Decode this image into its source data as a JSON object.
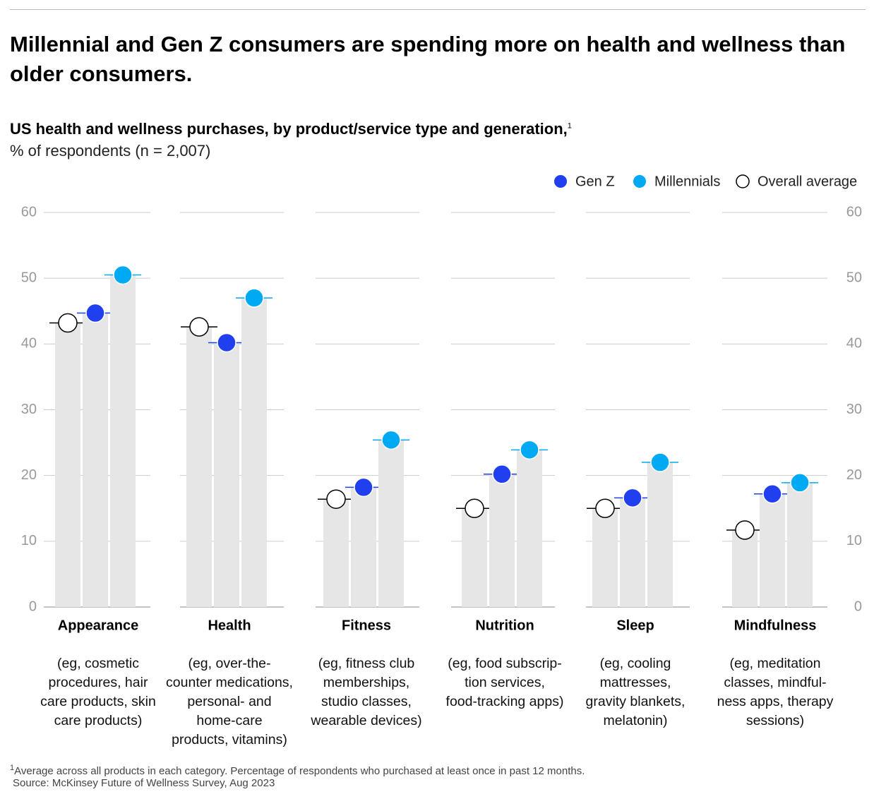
{
  "chart_data": {
    "type": "dot_bar",
    "title": "Millennial and Gen Z consumers are spending more on health and wellness than older consumers.",
    "subtitle": "US health and wellness purchases, by product/service type and generation,",
    "footnote_marker": "1",
    "unit_label": "% of respondents (n = 2,007)",
    "categories": [
      "Appearance",
      "Health",
      "Fitness",
      "Nutrition",
      "Sleep",
      "Mindfulness"
    ],
    "descriptions": [
      [
        "(eg, cosmetic",
        "procedures, hair",
        "care products, skin",
        "care products)"
      ],
      [
        "(eg, over-the-",
        "counter medications,",
        "personal- and",
        "home-care",
        "products, vitamins)"
      ],
      [
        "(eg, fitness club",
        "memberships,",
        "studio classes,",
        "wearable devices)"
      ],
      [
        "(eg, food subscrip-",
        "tion services,",
        "food-tracking apps)"
      ],
      [
        "(eg, cooling",
        "mattresses,",
        "gravity blankets,",
        "melatonin)"
      ],
      [
        "(eg, meditation",
        "classes, mindful-",
        "ness apps, therapy",
        "sessions)"
      ]
    ],
    "series": [
      {
        "name": "Gen Z",
        "color": "#2040f0",
        "marker": "filled",
        "values": [
          44.7,
          40.2,
          18.2,
          20.2,
          16.6,
          17.2
        ]
      },
      {
        "name": "Millennials",
        "color": "#00a9f4",
        "marker": "filled",
        "values": [
          50.5,
          47.0,
          25.4,
          23.9,
          22.0,
          18.9
        ]
      },
      {
        "name": "Overall average",
        "color": "#000000",
        "marker": "hollow",
        "values": [
          43.2,
          42.6,
          16.4,
          15.0,
          15.0,
          11.7
        ]
      }
    ],
    "bar_color": "#e6e6e6",
    "ylim": [
      0,
      60
    ],
    "yticks": [
      0,
      10,
      20,
      30,
      40,
      50,
      60
    ],
    "grid": true,
    "legend": "top-right",
    "footnote": "Average across all products in each category. Percentage of respondents who purchased at least once in past 12 months.",
    "source": "Source: McKinsey Future of Wellness Survey, Aug 2023"
  }
}
